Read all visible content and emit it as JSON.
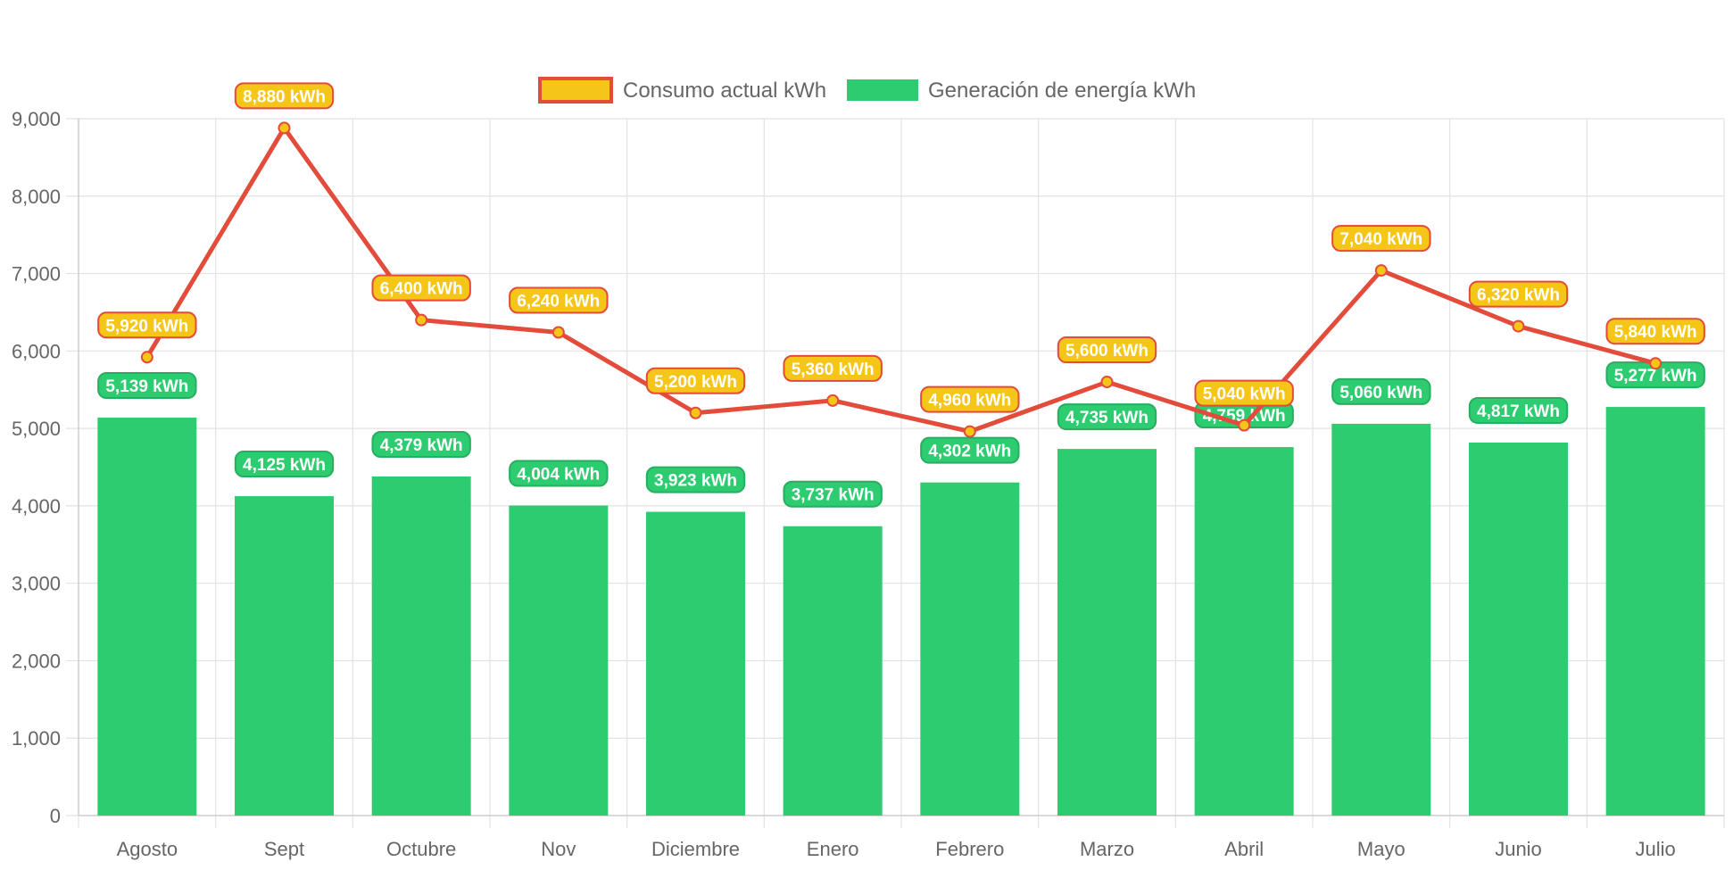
{
  "chart_data": {
    "type": "bar",
    "title": "",
    "xlabel": "",
    "ylabel": "",
    "ylim": [
      0,
      9000
    ],
    "y_ticks": [
      0,
      1000,
      2000,
      3000,
      4000,
      5000,
      6000,
      7000,
      8000,
      9000
    ],
    "y_tick_labels": [
      "0",
      "1,000",
      "2,000",
      "3,000",
      "4,000",
      "5,000",
      "6,000",
      "7,000",
      "8,000",
      "9,000"
    ],
    "grid": true,
    "legend_position": "top-center",
    "categories": [
      "Agosto",
      "Sept",
      "Octubre",
      "Nov",
      "Diciembre",
      "Enero",
      "Febrero",
      "Marzo",
      "Abril",
      "Mayo",
      "Junio",
      "Julio"
    ],
    "series": [
      {
        "name": "Consumo actual kWh",
        "type": "line",
        "color": "#E34B3B",
        "fill": "#F5C518",
        "values": [
          5920,
          8880,
          6400,
          6240,
          5200,
          5360,
          4960,
          5600,
          5040,
          7040,
          6320,
          5840
        ],
        "labels": [
          "5,920 kWh",
          "8,880 kWh",
          "6,400 kWh",
          "6,240 kWh",
          "5,200 kWh",
          "5,360 kWh",
          "4,960 kWh",
          "5,600 kWh",
          "5,040 kWh",
          "7,040 kWh",
          "6,320 kWh",
          "5,840 kWh"
        ]
      },
      {
        "name": "Generación de energía kWh",
        "type": "bar",
        "color": "#2ECC71",
        "values": [
          5139,
          4125,
          4379,
          4004,
          3923,
          3737,
          4302,
          4735,
          4759,
          5060,
          4817,
          5277
        ],
        "labels": [
          "5,139 kWh",
          "4,125 kWh",
          "4,379 kWh",
          "4,004 kWh",
          "3,923 kWh",
          "3,737 kWh",
          "4,302 kWh",
          "4,735 kWh",
          "4,759 kWh",
          "5,060 kWh",
          "4,817 kWh",
          "5,277 kWh"
        ]
      }
    ]
  }
}
